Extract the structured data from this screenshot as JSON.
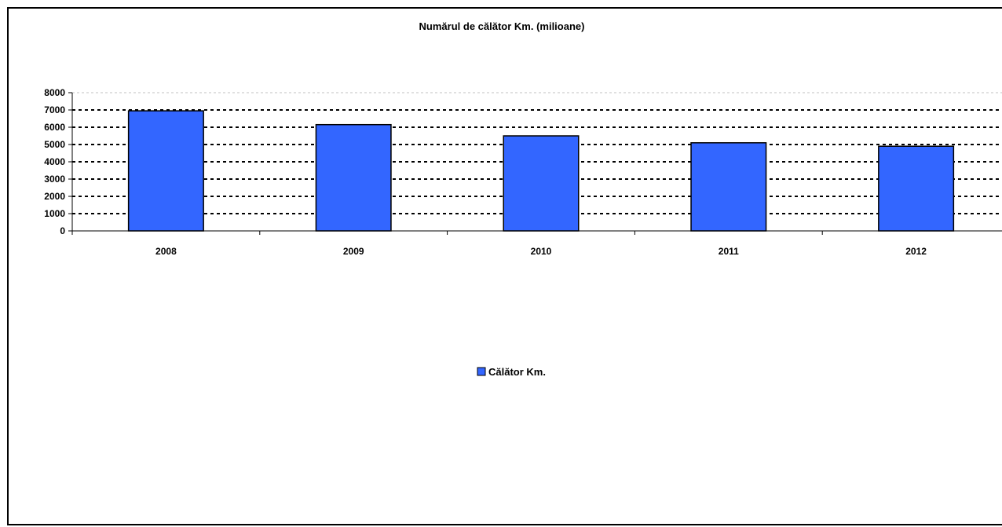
{
  "chart_data": {
    "type": "bar",
    "title": "Numărul de călător Km. (milioane)",
    "xlabel": "",
    "ylabel": "",
    "categories": [
      "2008",
      "2009",
      "2010",
      "2011",
      "2012"
    ],
    "series": [
      {
        "name": "Călător Km.",
        "values": [
          6950,
          6150,
          5500,
          5100,
          4900
        ],
        "color": "#3366FF"
      }
    ],
    "ylim": [
      0,
      8000
    ],
    "yticks": [
      0,
      1000,
      2000,
      3000,
      4000,
      5000,
      6000,
      7000,
      8000
    ],
    "grid": true,
    "legend": "bottom-center"
  }
}
